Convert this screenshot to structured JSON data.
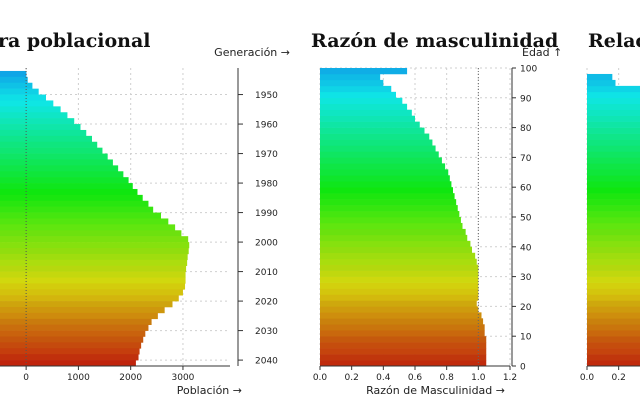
{
  "titles": {
    "pyramid": "ra poblacional",
    "ratio": "Razón de masculinidad",
    "relation": "Relac"
  },
  "chart_data": [
    {
      "type": "bar",
      "orientation": "horizontal",
      "title": "ra poblacional",
      "xlabel": "Población →",
      "ylabel": "Generación →",
      "xlim": [
        -500,
        3900
      ],
      "x_ticks": [
        "0",
        "1000",
        "2000",
        "3000"
      ],
      "y_ticks": [
        "1950",
        "1960",
        "1970",
        "1980",
        "1990",
        "2000",
        "2010",
        "2020",
        "2030",
        "2040"
      ],
      "grid": true,
      "series": [
        {
          "generations": [
            1943,
            1945,
            1947,
            1949,
            1951,
            1953,
            1955,
            1957,
            1959,
            1961,
            1963,
            1965,
            1967,
            1969,
            1971,
            1973,
            1975,
            1977,
            1979,
            1981,
            1983,
            1985,
            1987,
            1989,
            1991,
            1993,
            1995,
            1997,
            1999,
            2001,
            2003,
            2005,
            2007,
            2009,
            2011,
            2013,
            2015,
            2017,
            2019,
            2021,
            2023,
            2025,
            2027,
            2029,
            2031,
            2033,
            2035,
            2037,
            2039,
            2041
          ],
          "values": [
            5,
            30,
            120,
            240,
            380,
            520,
            660,
            790,
            920,
            1040,
            1150,
            1260,
            1360,
            1460,
            1560,
            1660,
            1760,
            1860,
            1960,
            2040,
            2130,
            2230,
            2340,
            2430,
            2580,
            2720,
            2850,
            2970,
            3100,
            3120,
            3110,
            3090,
            3080,
            3060,
            3050,
            3050,
            3040,
            3000,
            2920,
            2800,
            2650,
            2520,
            2400,
            2340,
            2280,
            2240,
            2200,
            2170,
            2150,
            2100
          ]
        }
      ]
    },
    {
      "type": "bar",
      "orientation": "horizontal",
      "title": "Razón de masculinidad",
      "xlabel": "Razón de Masculinidad →",
      "ylabel": "Edad ↑",
      "xlim": [
        0,
        1.2
      ],
      "ylim": [
        0,
        100
      ],
      "x_ticks": [
        "0.0",
        "0.2",
        "0.4",
        "0.6",
        "0.8",
        "1.0",
        "1.2"
      ],
      "y_ticks": [
        "0",
        "10",
        "20",
        "30",
        "40",
        "50",
        "60",
        "70",
        "80",
        "90",
        "100"
      ],
      "reference_line": 1.0,
      "grid": true,
      "series": [
        {
          "ages": [
            1,
            3,
            5,
            7,
            9,
            11,
            13,
            15,
            17,
            19,
            21,
            23,
            25,
            27,
            29,
            31,
            33,
            35,
            37,
            39,
            41,
            43,
            45,
            47,
            49,
            51,
            53,
            55,
            57,
            59,
            61,
            63,
            65,
            67,
            69,
            71,
            73,
            75,
            77,
            79,
            81,
            83,
            85,
            87,
            89,
            91,
            93,
            95,
            97,
            99
          ],
          "values": [
            1.05,
            1.05,
            1.05,
            1.05,
            1.05,
            1.04,
            1.04,
            1.03,
            1.02,
            1.0,
            0.99,
            1.0,
            1.0,
            1.0,
            1.0,
            1.0,
            1.0,
            0.99,
            0.98,
            0.96,
            0.95,
            0.93,
            0.92,
            0.9,
            0.89,
            0.88,
            0.87,
            0.86,
            0.85,
            0.84,
            0.83,
            0.82,
            0.81,
            0.79,
            0.77,
            0.75,
            0.73,
            0.71,
            0.69,
            0.66,
            0.63,
            0.6,
            0.58,
            0.55,
            0.52,
            0.48,
            0.45,
            0.4,
            0.38,
            0.55
          ]
        }
      ]
    },
    {
      "type": "bar",
      "orientation": "horizontal",
      "title": "Relac",
      "x_ticks": [
        "0.0",
        "0.2"
      ],
      "xlim": [
        0,
        1.2
      ],
      "ylim": [
        0,
        100
      ],
      "grid": true,
      "series": [
        {
          "ages": [
            1,
            3,
            5,
            7,
            9,
            11,
            13,
            15,
            17,
            19,
            21,
            23,
            25,
            27,
            29,
            31,
            33,
            35,
            37,
            39,
            41,
            43,
            45,
            47,
            49,
            51,
            53,
            55,
            57,
            59,
            61,
            63,
            65,
            67,
            69,
            71,
            73,
            75,
            77,
            79,
            81,
            83,
            85,
            87,
            89,
            91,
            93,
            95,
            97
          ],
          "values": [
            1,
            1,
            1,
            1,
            1,
            1,
            1,
            1,
            1,
            1,
            1,
            1,
            1,
            1,
            1,
            1,
            1,
            1,
            1,
            1,
            1,
            1,
            1,
            1,
            1,
            1,
            1,
            1,
            1,
            1,
            1,
            1,
            1,
            1,
            1,
            1,
            1,
            1,
            1,
            1,
            1,
            1,
            1,
            1,
            1,
            1,
            1,
            0.18,
            0.16
          ]
        }
      ]
    }
  ]
}
